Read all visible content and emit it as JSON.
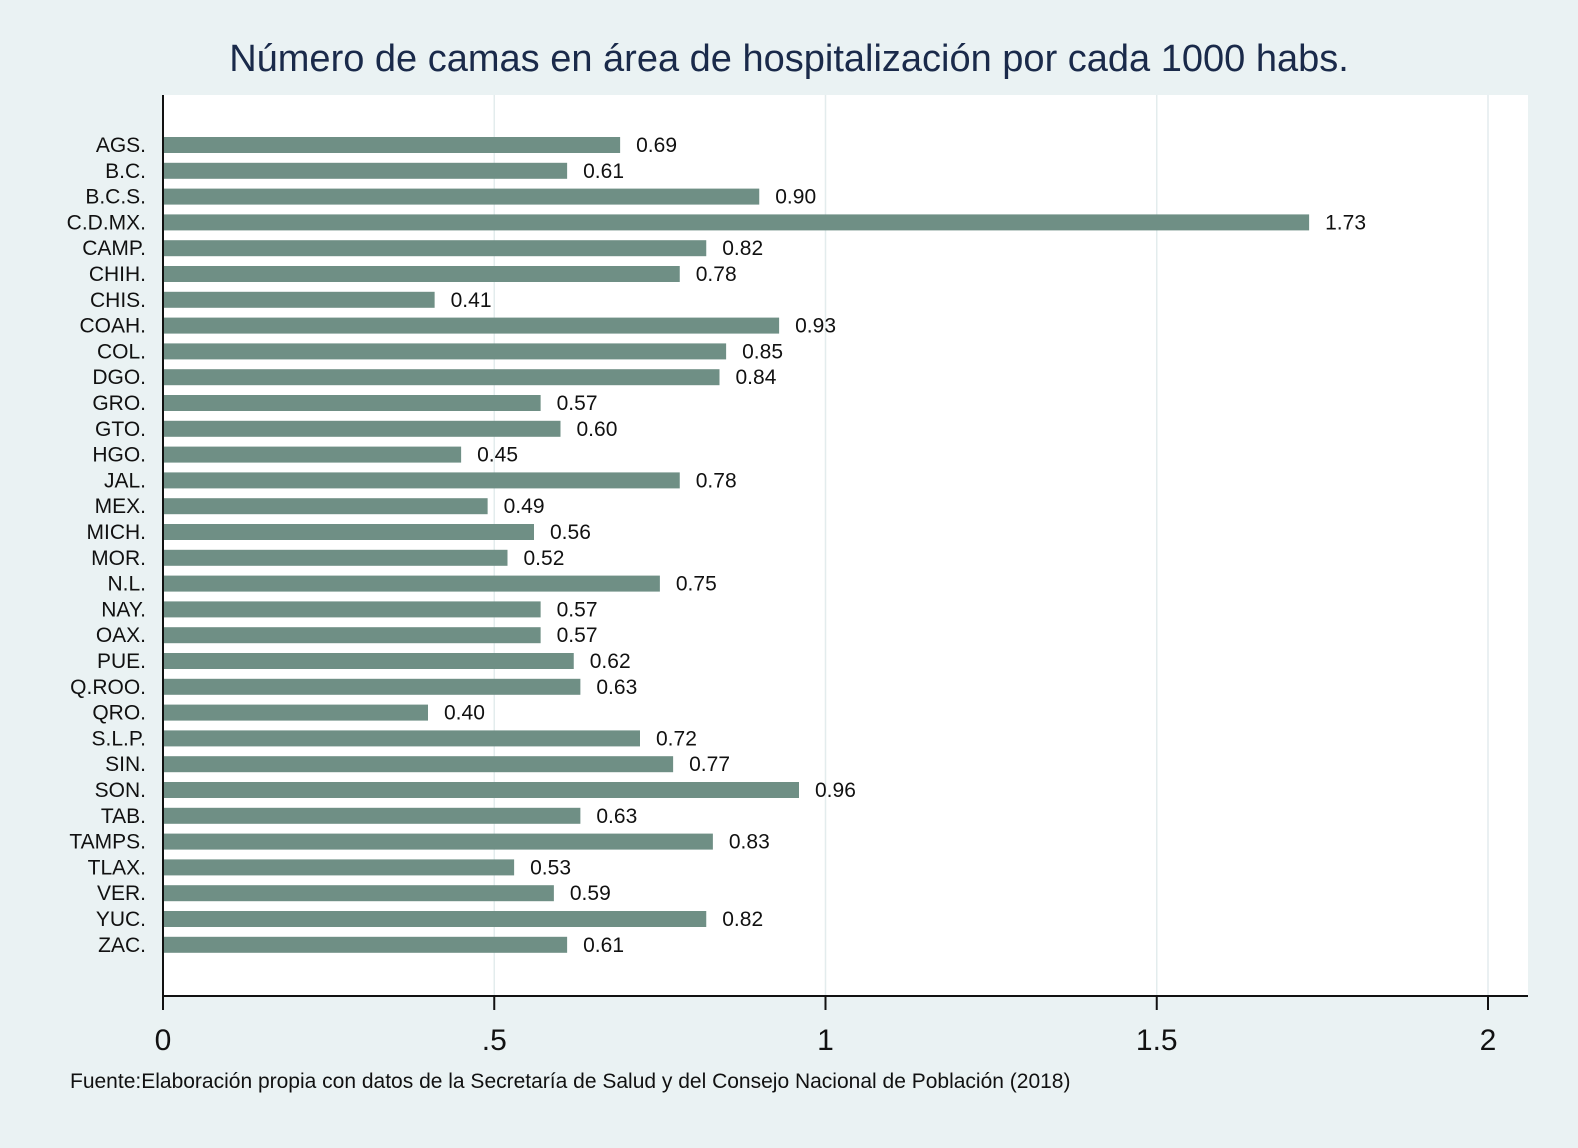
{
  "chart_data": {
    "type": "bar",
    "orientation": "horizontal",
    "title": "Número de camas en área de hospitalización por cada 1000 habs.",
    "source": "Fuente:Elaboración propia con datos de la Secretaría de Salud y del Consejo Nacional de Población (2018)",
    "categories": [
      "AGS.",
      "B.C.",
      "B.C.S.",
      "C.D.MX.",
      "CAMP.",
      "CHIH.",
      "CHIS.",
      "COAH.",
      "COL.",
      "DGO.",
      "GRO.",
      "GTO.",
      "HGO.",
      "JAL.",
      "MEX.",
      "MICH.",
      "MOR.",
      "N.L.",
      "NAY.",
      "OAX.",
      "PUE.",
      "Q.ROO.",
      "QRO.",
      "S.L.P.",
      "SIN.",
      "SON.",
      "TAB.",
      "TAMPS.",
      "TLAX.",
      "VER.",
      "YUC.",
      "ZAC."
    ],
    "values": [
      0.69,
      0.61,
      0.9,
      1.73,
      0.82,
      0.78,
      0.41,
      0.93,
      0.85,
      0.84,
      0.57,
      0.6,
      0.45,
      0.78,
      0.49,
      0.56,
      0.52,
      0.75,
      0.57,
      0.57,
      0.62,
      0.63,
      0.4,
      0.72,
      0.77,
      0.96,
      0.63,
      0.83,
      0.53,
      0.59,
      0.82,
      0.61
    ],
    "value_labels": [
      "0.69",
      "0.61",
      "0.90",
      "1.73",
      "0.82",
      "0.78",
      "0.41",
      "0.93",
      "0.85",
      "0.84",
      "0.57",
      "0.60",
      "0.45",
      "0.78",
      "0.49",
      "0.56",
      "0.52",
      "0.75",
      "0.57",
      "0.57",
      "0.62",
      "0.63",
      "0.40",
      "0.72",
      "0.77",
      "0.96",
      "0.63",
      "0.83",
      "0.53",
      "0.59",
      "0.82",
      "0.61"
    ],
    "xticks": [
      0,
      0.5,
      1,
      1.5,
      2
    ],
    "xtick_labels": [
      "0",
      ".5",
      "1",
      "1.5",
      "2"
    ],
    "xlim": [
      0,
      2.06
    ],
    "xlabel": "",
    "ylabel": "",
    "grid": true,
    "colors": {
      "bar": "#6f8f85",
      "background": "#eaf2f3",
      "plot_background": "#ffffff",
      "grid": "#e3eced",
      "title": "#1a2a4a"
    }
  }
}
